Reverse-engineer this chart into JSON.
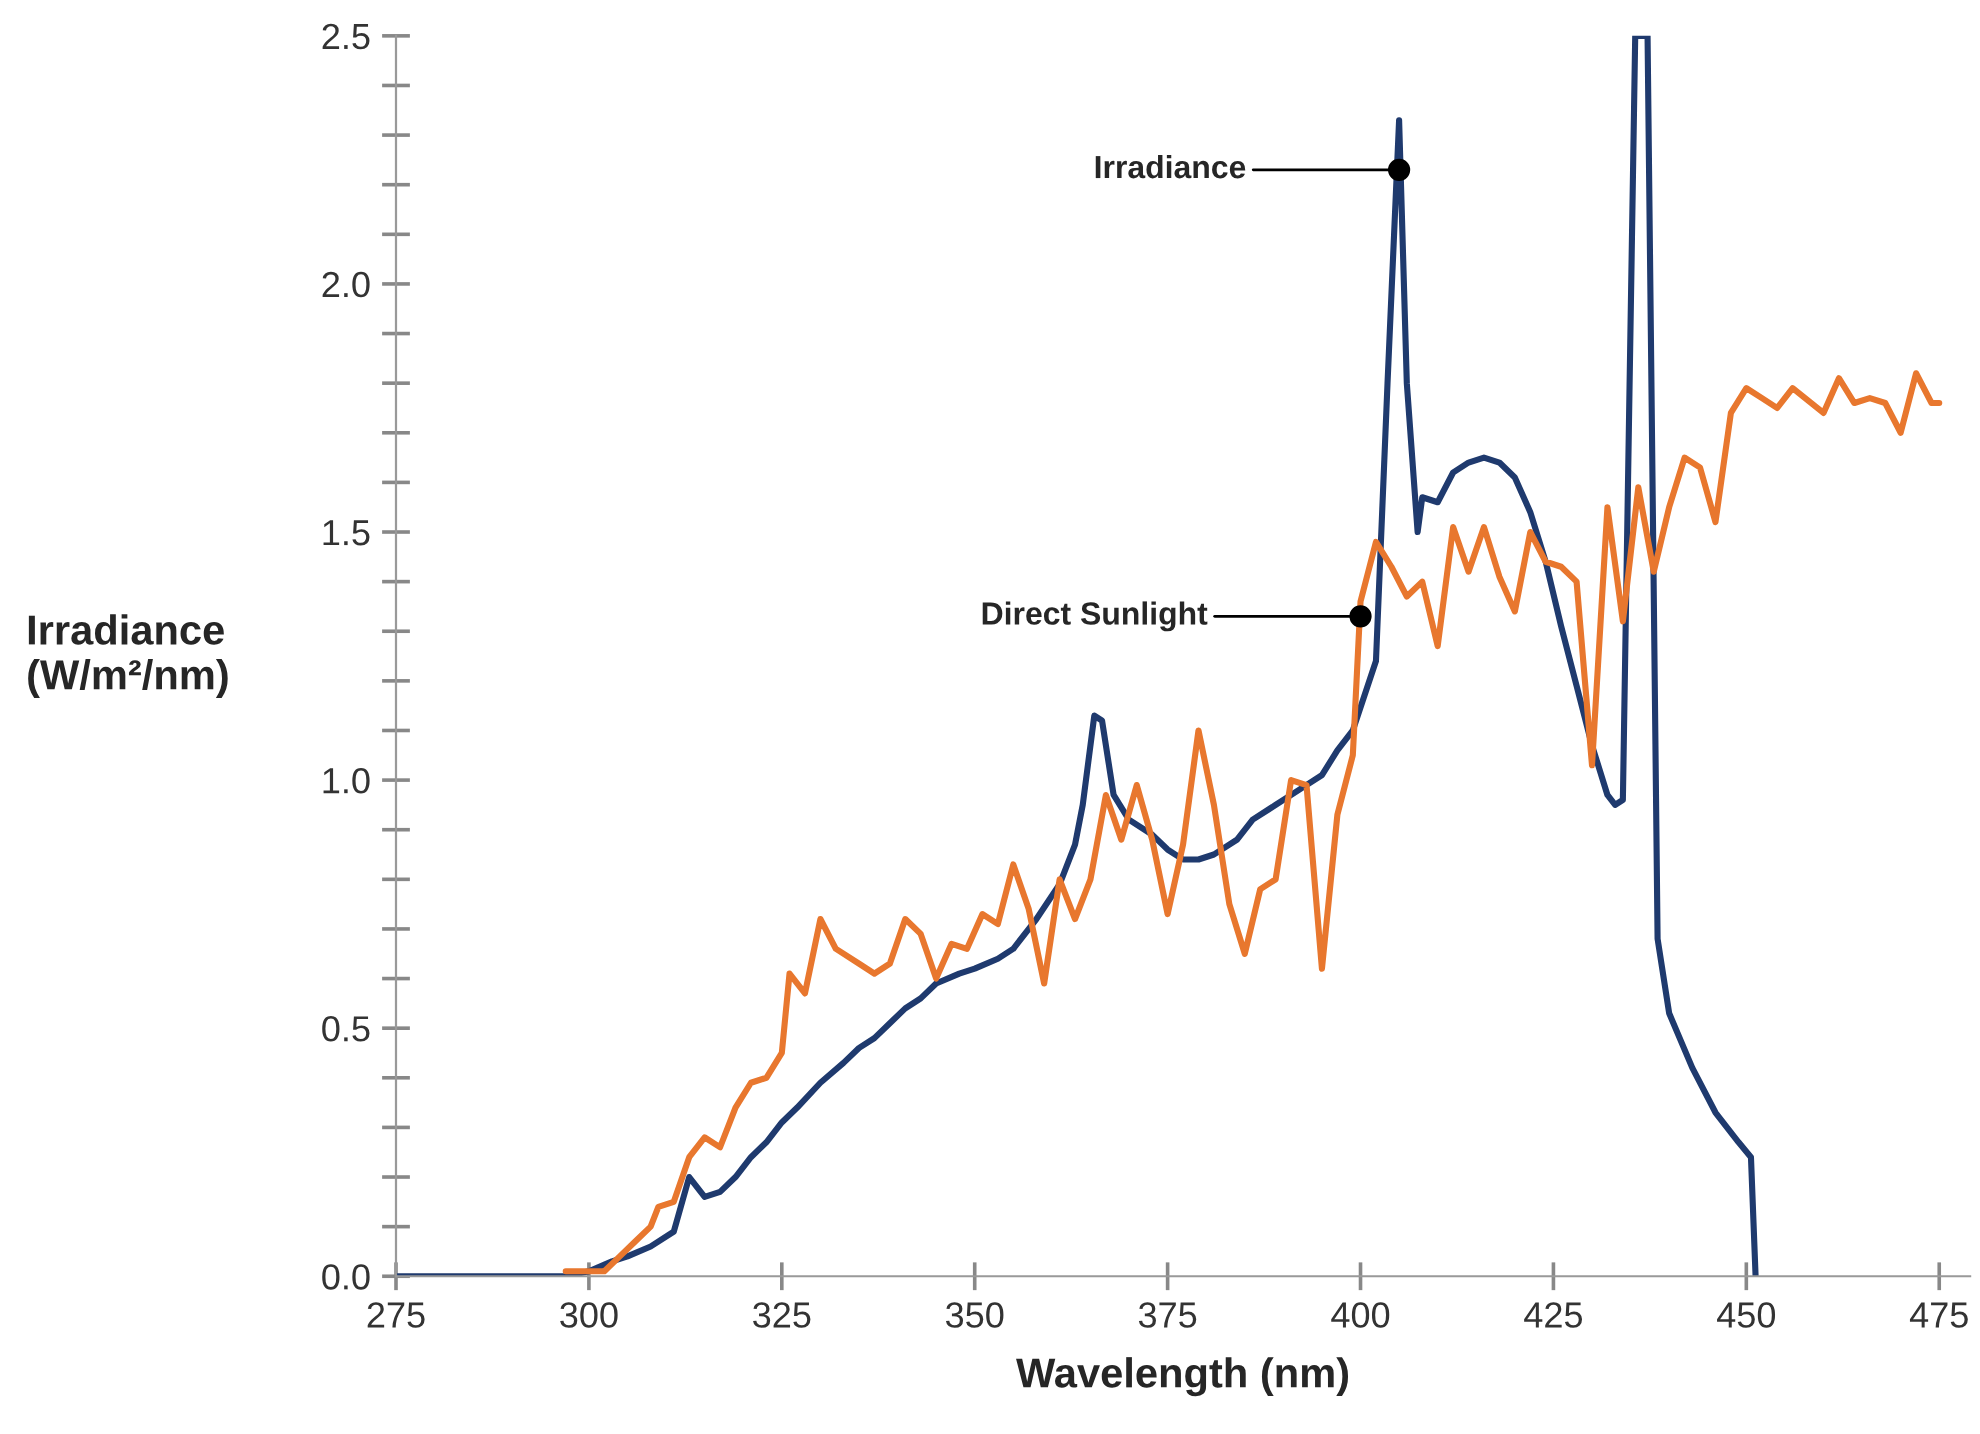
{
  "chart_data": {
    "type": "line",
    "xlabel": "Wavelength (nm)",
    "ylabel": "Irradiance\n(W/m²/nm)",
    "xlim": [
      275,
      479
    ],
    "xticks": [
      275,
      300,
      325,
      350,
      375,
      400,
      425,
      450,
      475
    ],
    "ylim": [
      0,
      2.5
    ],
    "yticks": [
      {
        "value": 0.0,
        "label": "0.0"
      },
      {
        "value": 0.1,
        "label": null
      },
      {
        "value": 0.2,
        "label": null
      },
      {
        "value": 0.3,
        "label": null
      },
      {
        "value": 0.4,
        "label": null
      },
      {
        "value": 0.5,
        "label": "0.5"
      },
      {
        "value": 0.6,
        "label": null
      },
      {
        "value": 0.7,
        "label": null
      },
      {
        "value": 0.8,
        "label": null
      },
      {
        "value": 0.9,
        "label": null
      },
      {
        "value": 1.0,
        "label": "1.0"
      },
      {
        "value": 1.1,
        "label": null
      },
      {
        "value": 1.2,
        "label": null
      },
      {
        "value": 1.3,
        "label": null
      },
      {
        "value": 1.4,
        "label": null
      },
      {
        "value": 1.5,
        "label": "1.5"
      },
      {
        "value": 1.6,
        "label": null
      },
      {
        "value": 1.7,
        "label": null
      },
      {
        "value": 1.8,
        "label": null
      },
      {
        "value": 1.9,
        "label": null
      },
      {
        "value": 2.0,
        "label": "2.0"
      },
      {
        "value": 2.1,
        "label": null
      },
      {
        "value": 2.2,
        "label": null
      },
      {
        "value": 2.3,
        "label": null
      },
      {
        "value": 2.4,
        "label": null
      },
      {
        "value": 2.5,
        "label": "2.5"
      }
    ],
    "grid": false,
    "legend": false,
    "marker": "none",
    "line_style": "solid",
    "series": [
      {
        "color": "#1f3a6e",
        "x": [
          275,
          297,
          300,
          303,
          305,
          308,
          311,
          313,
          315,
          317,
          319,
          321,
          323,
          325,
          327,
          330,
          333,
          335,
          337,
          339,
          341,
          343,
          345,
          348,
          350,
          353,
          355,
          358,
          361,
          363,
          364,
          365.5,
          366.5,
          368,
          370,
          373,
          375,
          377,
          379,
          381,
          384,
          386,
          389,
          392,
          395,
          397,
          399,
          402,
          403.5,
          405,
          406,
          407.4,
          408,
          410,
          412,
          414,
          416,
          418,
          420,
          422,
          424,
          426,
          428,
          430,
          432,
          433,
          434,
          435.6,
          437.2,
          438.5,
          440,
          443,
          446,
          449,
          450.6,
          451.2
        ],
        "values": [
          0,
          0,
          0.01,
          0.03,
          0.04,
          0.06,
          0.09,
          0.2,
          0.16,
          0.17,
          0.2,
          0.24,
          0.27,
          0.31,
          0.34,
          0.39,
          0.43,
          0.46,
          0.48,
          0.51,
          0.54,
          0.56,
          0.59,
          0.61,
          0.62,
          0.64,
          0.66,
          0.72,
          0.79,
          0.87,
          0.95,
          1.13,
          1.12,
          0.97,
          0.92,
          0.89,
          0.86,
          0.84,
          0.84,
          0.85,
          0.88,
          0.92,
          0.95,
          0.98,
          1.01,
          1.06,
          1.1,
          1.24,
          1.8,
          2.33,
          1.8,
          1.5,
          1.57,
          1.56,
          1.62,
          1.64,
          1.65,
          1.64,
          1.61,
          1.54,
          1.44,
          1.31,
          1.19,
          1.07,
          0.97,
          0.95,
          0.96,
          2.5,
          2.5,
          0.68,
          0.53,
          0.42,
          0.33,
          0.27,
          0.24,
          0
        ]
      },
      {
        "color": "#e8772e",
        "x": [
          297,
          302,
          304,
          306,
          308,
          309,
          311,
          313,
          315,
          317,
          319,
          321,
          323,
          325,
          326,
          328,
          330,
          332,
          335,
          337,
          339,
          341,
          343,
          345,
          347,
          349,
          351,
          353,
          355,
          357,
          359,
          361,
          363,
          365,
          367,
          369,
          371,
          373,
          375,
          377,
          379,
          381,
          383,
          385,
          387,
          389,
          391,
          393,
          395,
          397,
          399,
          400,
          402,
          404,
          406,
          408,
          410,
          412,
          414,
          416,
          418,
          420,
          422,
          424,
          426,
          428,
          430,
          432,
          434,
          436,
          438,
          440,
          442,
          444,
          446,
          448,
          450,
          452,
          454,
          456,
          460,
          462,
          464,
          466,
          468,
          470,
          472,
          474,
          475
        ],
        "values": [
          0.01,
          0.01,
          0.04,
          0.07,
          0.1,
          0.14,
          0.15,
          0.24,
          0.28,
          0.26,
          0.34,
          0.39,
          0.4,
          0.45,
          0.61,
          0.57,
          0.72,
          0.66,
          0.63,
          0.61,
          0.63,
          0.72,
          0.69,
          0.6,
          0.67,
          0.66,
          0.73,
          0.71,
          0.83,
          0.74,
          0.59,
          0.8,
          0.72,
          0.8,
          0.97,
          0.88,
          0.99,
          0.88,
          0.73,
          0.87,
          1.1,
          0.95,
          0.75,
          0.65,
          0.78,
          0.8,
          1.0,
          0.99,
          0.62,
          0.93,
          1.05,
          1.36,
          1.48,
          1.43,
          1.37,
          1.4,
          1.27,
          1.51,
          1.42,
          1.51,
          1.41,
          1.34,
          1.5,
          1.44,
          1.43,
          1.4,
          1.03,
          1.55,
          1.32,
          1.59,
          1.42,
          1.55,
          1.65,
          1.63,
          1.52,
          1.74,
          1.79,
          1.77,
          1.75,
          1.79,
          1.74,
          1.81,
          1.76,
          1.77,
          1.76,
          1.7,
          1.82,
          1.76,
          1.76
        ]
      }
    ],
    "annotations": [
      {
        "text": "Irradiance",
        "x": 405,
        "y": 2.23
      },
      {
        "text": "Direct Sunlight",
        "x": 400,
        "y": 1.33
      }
    ]
  }
}
